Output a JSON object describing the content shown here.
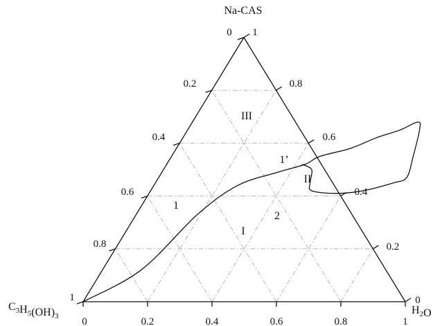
{
  "chart_data": {
    "type": "ternary",
    "vertices": {
      "top": "Na-CAS",
      "left": "C₃H₅(OH)₃",
      "right": "H₂O"
    },
    "tick_labels": [
      "0",
      "0.2",
      "0.4",
      "0.6",
      "0.8",
      "1"
    ],
    "left_edge_ticks": [
      "0",
      "0.2",
      "0.4",
      "0.6",
      "0.8",
      "1"
    ],
    "right_edge_ticks": [
      "1",
      "0.8",
      "0.6",
      "0.4",
      "0.2",
      "0"
    ],
    "bottom_edge_ticks": [
      "0",
      "0.2",
      "0.4",
      "0.6",
      "0.8",
      "1"
    ],
    "grid": true,
    "regions": [
      "I",
      "II",
      "III"
    ],
    "curve_labels": [
      "1",
      "1’",
      "2"
    ],
    "curve_1": [
      {
        "h2o": 0.0,
        "nacas": 0.0
      },
      {
        "h2o": 0.12,
        "nacas": 0.12
      },
      {
        "h2o": 0.19,
        "nacas": 0.33
      },
      {
        "h2o": 0.26,
        "nacas": 0.44
      },
      {
        "h2o": 0.36,
        "nacas": 0.49
      },
      {
        "h2o": 0.43,
        "nacas": 0.52
      },
      {
        "h2o": 0.46,
        "nacas": 0.55
      },
      {
        "h2o": 0.54,
        "nacas": 0.58
      },
      {
        "h2o": 0.6,
        "nacas": 0.62
      },
      {
        "h2o": 0.66,
        "nacas": 0.65
      },
      {
        "h2o": 0.7,
        "nacas": 0.68
      },
      {
        "h2o": 0.72,
        "nacas": 0.65
      },
      {
        "h2o": 0.75,
        "nacas": 0.55
      },
      {
        "h2o": 0.77,
        "nacas": 0.47
      },
      {
        "h2o": 0.74,
        "nacas": 0.45
      },
      {
        "h2o": 0.66,
        "nacas": 0.42
      },
      {
        "h2o": 0.58,
        "nacas": 0.41
      },
      {
        "h2o": 0.5,
        "nacas": 0.42
      },
      {
        "h2o": 0.48,
        "nacas": 0.45
      },
      {
        "h2o": 0.46,
        "nacas": 0.5
      },
      {
        "h2o": 0.42,
        "nacas": 0.52
      }
    ]
  }
}
